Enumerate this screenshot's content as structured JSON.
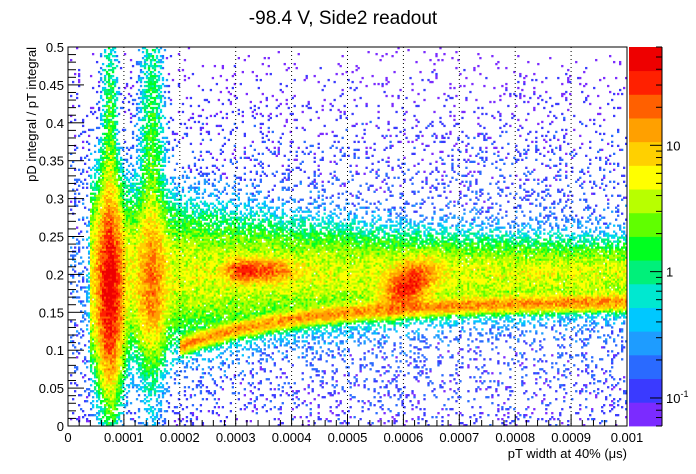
{
  "chart_data": {
    "type": "heatmap",
    "title": "-98.4 V, Side2 readout",
    "xlabel": "pT width at 40% (μs)",
    "ylabel": "pD integral / pT integral",
    "xlim": [
      0,
      0.001
    ],
    "ylim": [
      0,
      0.5
    ],
    "x_ticks": [
      "0",
      "0.0001",
      "0.0002",
      "0.0003",
      "0.0004",
      "0.0005",
      "0.0006",
      "0.0007",
      "0.0008",
      "0.0009",
      "0.001"
    ],
    "y_ticks": [
      "0",
      "0.05",
      "0.1",
      "0.15",
      "0.2",
      "0.25",
      "0.3",
      "0.35",
      "0.4",
      "0.45",
      "0.5"
    ],
    "z_scale": "log",
    "z_ticks": [
      {
        "base": "10",
        "exp": "-1",
        "value": 0.1
      },
      {
        "base": "1",
        "exp": "",
        "value": 1
      },
      {
        "base": "10",
        "exp": "",
        "value": 10
      }
    ],
    "zlim": [
      0.06,
      60
    ],
    "grid": "x-dotted",
    "features": [
      {
        "x": 7.5e-05,
        "y": 0.18,
        "note": "dense vertical band"
      },
      {
        "x": 0.00015,
        "y": 0.19,
        "note": "vertical band"
      },
      {
        "x": 0.00032,
        "y": 0.205,
        "note": "cluster"
      },
      {
        "x": 0.0006,
        "y": 0.2,
        "note": "cluster"
      }
    ],
    "colors": {
      "palette": [
        "#7b2bff",
        "#3a3aff",
        "#2a6aff",
        "#1e9cff",
        "#00c8ff",
        "#00e8d0",
        "#00f07a",
        "#00ff20",
        "#60ff00",
        "#b8ff00",
        "#ffff00",
        "#ffd000",
        "#ffa000",
        "#ff6000",
        "#ff2000",
        "#ee0000"
      ]
    }
  }
}
